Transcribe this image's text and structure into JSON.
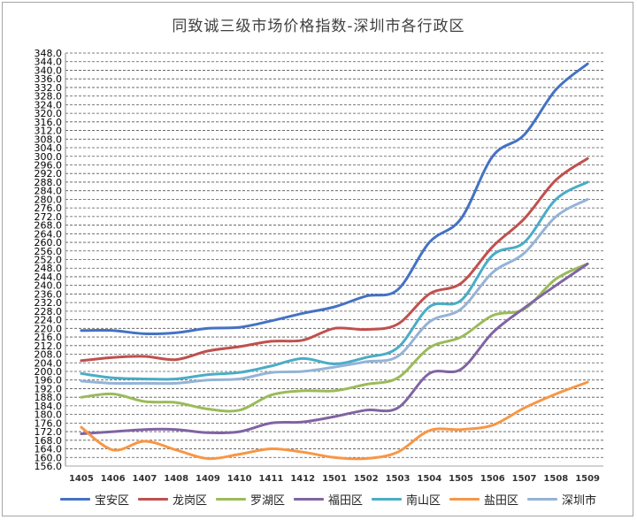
{
  "chart_data": {
    "type": "line",
    "title": "同致诚三级市场价格指数-深圳市各行政区",
    "xlabel": "",
    "ylabel": "",
    "x": [
      "1405",
      "1406",
      "1407",
      "1408",
      "1409",
      "1410",
      "1411",
      "1412",
      "1501",
      "1502",
      "1503",
      "1504",
      "1505",
      "1506",
      "1507",
      "1508",
      "1509"
    ],
    "ylim": [
      156.0,
      348.0
    ],
    "ytick_step": 4,
    "ytick_labels": [
      "156.0",
      "160.0",
      "164.0",
      "168.0",
      "172.0",
      "176.0",
      "180.0",
      "184.0",
      "188.0",
      "192.0",
      "196.0",
      "200.0",
      "204.0",
      "208.0",
      "212.0",
      "216.0",
      "220.0",
      "224.0",
      "228.0",
      "232.0",
      "236.0",
      "240.0",
      "244.0",
      "248.0",
      "252.0",
      "256.0",
      "260.0",
      "264.0",
      "268.0",
      "272.0",
      "276.0",
      "280.0",
      "284.0",
      "288.0",
      "292.0",
      "296.0",
      "300.0",
      "304.0",
      "308.0",
      "312.0",
      "316.0",
      "320.0",
      "324.0",
      "328.0",
      "332.0",
      "336.0",
      "340.0",
      "344.0",
      "348.0"
    ],
    "grid": true,
    "legend_position": "bottom",
    "series": [
      {
        "name": "宝安区",
        "color": "#4472c4",
        "values": [
          219,
          219,
          217.5,
          218,
          220,
          220.5,
          223.5,
          227,
          230,
          235,
          238,
          260,
          271,
          300,
          310,
          331,
          343
        ]
      },
      {
        "name": "龙岗区",
        "color": "#c0504d",
        "values": [
          205,
          206.5,
          207,
          205.5,
          209.5,
          211.5,
          214,
          214.5,
          220,
          219.5,
          222,
          236,
          241,
          258,
          271,
          289,
          299
        ]
      },
      {
        "name": "罗湖区",
        "color": "#9bbb59",
        "values": [
          188,
          189.5,
          186,
          185.5,
          182.5,
          182,
          189,
          191,
          191,
          194,
          197,
          211,
          216,
          226,
          229,
          243,
          250
        ]
      },
      {
        "name": "福田区",
        "color": "#8064a2",
        "values": [
          171,
          172,
          173,
          173,
          171.5,
          172,
          176,
          176.5,
          179,
          182,
          183,
          199,
          201,
          218,
          229.5,
          240,
          250
        ]
      },
      {
        "name": "南山区",
        "color": "#4bacc6",
        "values": [
          199,
          197,
          196.5,
          196.5,
          198.5,
          199.5,
          202.5,
          206,
          203.5,
          206.5,
          211,
          230,
          233,
          254,
          260,
          280,
          288
        ]
      },
      {
        "name": "盐田区",
        "color": "#f79646",
        "values": [
          174,
          163.5,
          167.5,
          163.5,
          159.5,
          161.5,
          164,
          162.5,
          160,
          159.5,
          162.5,
          172.5,
          173,
          175,
          183,
          189.5,
          195
        ]
      },
      {
        "name": "深圳市",
        "color": "#95b3d7",
        "values": [
          195.5,
          194.5,
          194.5,
          194.5,
          196,
          196.5,
          199.5,
          200,
          202,
          204.5,
          207,
          223,
          229,
          246,
          255,
          272,
          280
        ]
      }
    ]
  }
}
